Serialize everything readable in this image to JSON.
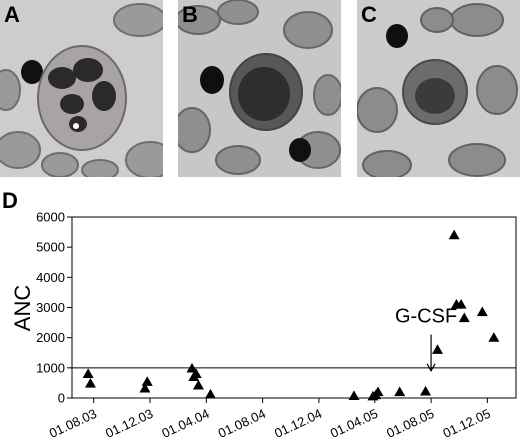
{
  "panels": [
    {
      "letter": "A",
      "cell": "neutrophil-cell"
    },
    {
      "letter": "B",
      "cell": "promyelocyte-cell"
    },
    {
      "letter": "C",
      "cell": "myelocyte-cell"
    }
  ],
  "chart_label": "D",
  "chart_data": {
    "type": "scatter",
    "title": "",
    "xlabel": "",
    "ylabel": "ANC",
    "ylim": [
      0,
      6000
    ],
    "yticks": [
      0,
      1000,
      2000,
      3000,
      4000,
      5000,
      6000
    ],
    "xticks": [
      "01.08.03",
      "01.12.03",
      "01.04.04",
      "01.08.04",
      "01.12.04",
      "01.04.05",
      "01.08.05",
      "01.12.05"
    ],
    "xlim": [
      "2003-06-15",
      "2006-02-01"
    ],
    "reference_line": 1000,
    "marker": "triangle",
    "annotation": {
      "text": "G-CSF",
      "date": "2005-08-01",
      "arrow_from": 2100,
      "arrow_to": 900
    },
    "points": [
      {
        "x": "2003-07-20",
        "y": 800
      },
      {
        "x": "2003-07-25",
        "y": 480
      },
      {
        "x": "2003-11-20",
        "y": 320
      },
      {
        "x": "2003-11-25",
        "y": 540
      },
      {
        "x": "2004-03-01",
        "y": 980
      },
      {
        "x": "2004-03-05",
        "y": 700
      },
      {
        "x": "2004-03-10",
        "y": 800
      },
      {
        "x": "2004-03-15",
        "y": 420
      },
      {
        "x": "2004-04-10",
        "y": 120
      },
      {
        "x": "2005-02-15",
        "y": 70
      },
      {
        "x": "2005-03-28",
        "y": 60
      },
      {
        "x": "2005-04-03",
        "y": 100
      },
      {
        "x": "2005-04-08",
        "y": 200
      },
      {
        "x": "2005-05-25",
        "y": 200
      },
      {
        "x": "2005-07-20",
        "y": 220
      },
      {
        "x": "2005-08-15",
        "y": 1600
      },
      {
        "x": "2005-09-20",
        "y": 5400
      },
      {
        "x": "2005-09-25",
        "y": 3100
      },
      {
        "x": "2005-10-05",
        "y": 3100
      },
      {
        "x": "2005-10-12",
        "y": 2650
      },
      {
        "x": "2005-11-20",
        "y": 2850
      },
      {
        "x": "2005-12-15",
        "y": 2000
      }
    ]
  }
}
